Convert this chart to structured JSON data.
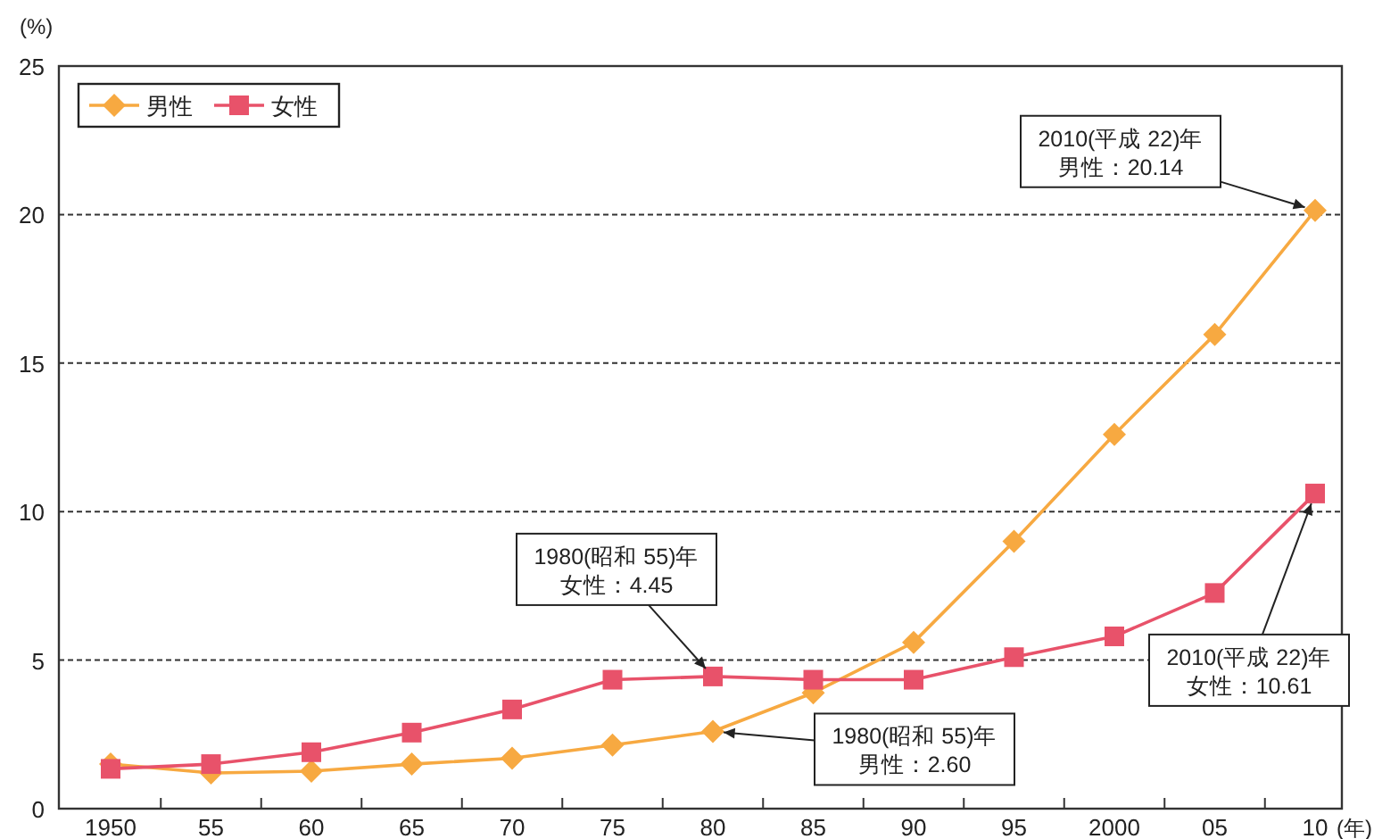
{
  "chart_data": {
    "type": "line",
    "xlabel": "(年)",
    "ylabel": "(%)",
    "categories": [
      "1950",
      "55",
      "60",
      "65",
      "70",
      "75",
      "80",
      "85",
      "90",
      "95",
      "2000",
      "05",
      "10"
    ],
    "series": [
      {
        "name": "男性",
        "color": "#f7a941",
        "marker": "diamond",
        "values": [
          1.5,
          1.2,
          1.26,
          1.5,
          1.7,
          2.14,
          2.6,
          3.9,
          5.6,
          9.0,
          12.6,
          15.96,
          20.14
        ]
      },
      {
        "name": "女性",
        "color": "#e8526a",
        "marker": "square",
        "values": [
          1.34,
          1.5,
          1.9,
          2.56,
          3.34,
          4.34,
          4.45,
          4.34,
          4.34,
          5.1,
          5.8,
          7.26,
          10.61
        ]
      }
    ],
    "ylim": [
      0,
      25
    ],
    "yticks": [
      0,
      5,
      10,
      15,
      20,
      25
    ],
    "grid": "y",
    "legend": "top left",
    "annotations": [
      {
        "text": "2010(平成 22)年男性：20.14",
        "x": "10",
        "y": 20.14
      },
      {
        "text": "1980(昭和 55)年女性：4.45",
        "x": "80",
        "y": 4.45
      },
      {
        "text": "1980(昭和 55)年男性：2.60",
        "x": "80",
        "y": 2.6
      },
      {
        "text": "2010(平成 22)年女性：10.61",
        "x": "10",
        "y": 10.61
      }
    ]
  }
}
